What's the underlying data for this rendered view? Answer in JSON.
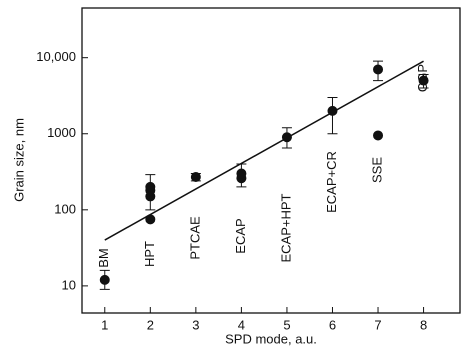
{
  "chart_data": {
    "type": "scatter",
    "xlabel": "SPD mode, a.u.",
    "ylabel": "Grain size, nm",
    "x": [
      1,
      2,
      2,
      2,
      2,
      3,
      4,
      4,
      5,
      6,
      7,
      7,
      8
    ],
    "values": [
      12,
      75,
      150,
      180,
      200,
      270,
      260,
      300,
      900,
      2000,
      7000,
      950,
      5000
    ],
    "error_low": [
      9,
      null,
      100,
      null,
      null,
      240,
      200,
      null,
      650,
      1000,
      5000,
      null,
      4000
    ],
    "error_high": [
      16,
      null,
      290,
      null,
      null,
      300,
      400,
      null,
      1200,
      3000,
      9000,
      null,
      6000
    ],
    "color": "#111111",
    "fit": {
      "x": [
        1,
        8
      ],
      "values": [
        40,
        9000
      ]
    },
    "annotations": [
      {
        "text": "BM",
        "x": 1
      },
      {
        "text": "HPT",
        "x": 2
      },
      {
        "text": "PTCAE",
        "x": 3
      },
      {
        "text": "ECAP",
        "x": 4
      },
      {
        "text": "ECAP+HPT",
        "x": 5
      },
      {
        "text": "ECAP+CR",
        "x": 6
      },
      {
        "text": "SSE",
        "x": 7
      },
      {
        "text": "CGP",
        "x": 8
      }
    ],
    "xlim": [
      0.5,
      8.8
    ],
    "xticks": [
      1,
      2,
      3,
      4,
      5,
      6,
      7,
      8
    ],
    "ylim": [
      4.4,
      45000
    ],
    "log_y": true,
    "yticks": [
      10,
      100,
      1000,
      {
        "value": 10000,
        "label": "10,000"
      }
    ]
  }
}
